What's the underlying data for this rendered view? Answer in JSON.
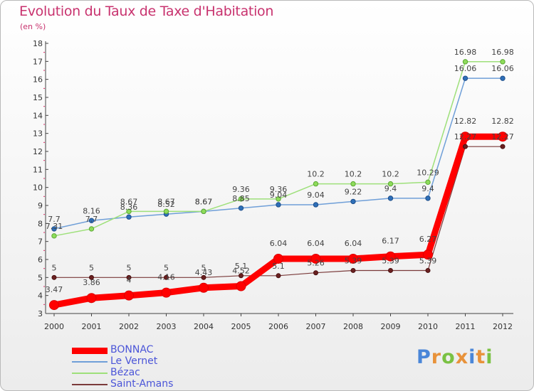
{
  "chart_data": {
    "type": "line",
    "title": "Evolution du Taux de Taxe d'Habitation",
    "subtitle": "(en %)",
    "x": [
      "2000",
      "2001",
      "2002",
      "2003",
      "2004",
      "2005",
      "2006",
      "2007",
      "2008",
      "2009",
      "2010",
      "2011",
      "2012"
    ],
    "ylim": [
      3,
      18
    ],
    "yticks": [
      3,
      4,
      5,
      6,
      7,
      8,
      9,
      10,
      11,
      12,
      13,
      14,
      15,
      16,
      17,
      18
    ],
    "grid": false,
    "legend_position": "bottom-left",
    "series": [
      {
        "name": "BONNAC",
        "color": "#ff0000",
        "values": [
          3.47,
          3.86,
          4,
          4.16,
          4.43,
          4.52,
          6.04,
          6.04,
          6.04,
          6.17,
          6.27,
          12.82,
          12.82
        ],
        "labels": [
          "3.47",
          "3.86",
          "4",
          "4.16",
          "4.43",
          "4.52",
          "6.04",
          "6.04",
          "6.04",
          "6.17",
          "6.27",
          "12.82",
          "12.82"
        ]
      },
      {
        "name": "Le Vernet",
        "color": "#6f9fd8",
        "values": [
          7.7,
          8.16,
          8.36,
          8.52,
          8.67,
          8.85,
          9.04,
          9.04,
          9.22,
          9.4,
          9.4,
          16.06,
          16.06
        ],
        "labels": [
          "7.7",
          "8.16",
          "8.36",
          "8.52",
          "8.67",
          "8.85",
          "9.04",
          "9.04",
          "9.22",
          "9.4",
          "9.4",
          "16.06",
          "16.06"
        ]
      },
      {
        "name": "Bézac",
        "color": "#9ee07a",
        "values": [
          7.31,
          7.7,
          8.67,
          8.67,
          8.67,
          9.36,
          9.36,
          10.2,
          10.2,
          10.2,
          10.29,
          16.98,
          16.98
        ],
        "labels": [
          "7.31",
          "7.7",
          "8.67",
          "8.67",
          "8.67",
          "9.36",
          "9.36",
          "10.2",
          "10.2",
          "10.2",
          "10.29",
          "16.98",
          "16.98"
        ]
      },
      {
        "name": "Saint-Amans",
        "color": "#7a3a3a",
        "values": [
          5,
          5,
          5,
          5,
          5,
          5.1,
          5.1,
          5.26,
          5.39,
          5.39,
          5.39,
          12.27,
          12.27
        ],
        "labels": [
          "5",
          "5",
          "5",
          "5",
          "5",
          "5.1",
          "5.1",
          "5.26",
          "5.39",
          "5.39",
          "5.39",
          "12.27",
          "12.27"
        ]
      }
    ]
  },
  "logo": {
    "letters": [
      "P",
      "r",
      "o",
      "x",
      "i",
      "t",
      "i"
    ],
    "colors": [
      "#4a86d8",
      "#e8923a",
      "#7ac143",
      "#e8923a",
      "#4a86d8",
      "#e8923a",
      "#7ac143"
    ]
  }
}
